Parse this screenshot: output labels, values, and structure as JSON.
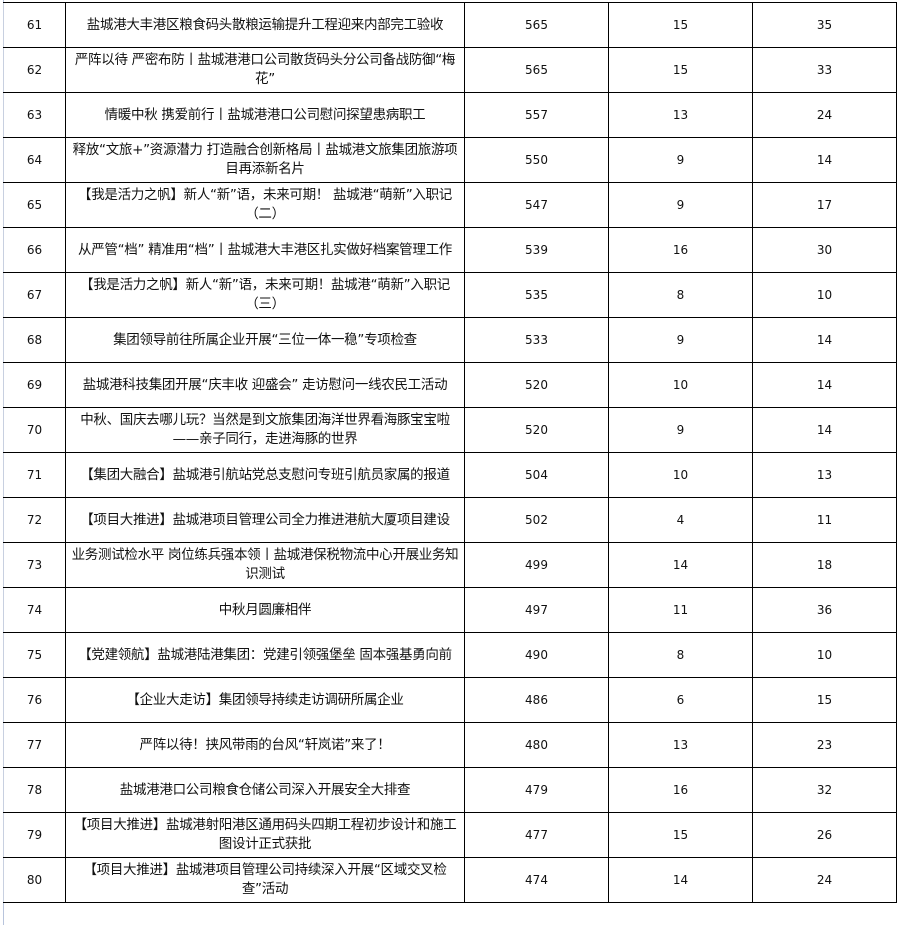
{
  "table": {
    "rows": [
      {
        "no": "61",
        "title": "盐城港大丰港区粮食码头散粮运输提升工程迎来内部完工验收",
        "v1": "565",
        "v2": "15",
        "v3": "35"
      },
      {
        "no": "62",
        "title": "严阵以待 严密布防丨盐城港港口公司散货码头分公司备战防御“梅花”",
        "v1": "565",
        "v2": "15",
        "v3": "33"
      },
      {
        "no": "63",
        "title": "情暖中秋 携爱前行丨盐城港港口公司慰问探望患病职工",
        "v1": "557",
        "v2": "13",
        "v3": "24"
      },
      {
        "no": "64",
        "title": "释放“文旅+”资源潜力 打造融合创新格局丨盐城港文旅集团旅游项目再添新名片",
        "v1": "550",
        "v2": "9",
        "v3": "14"
      },
      {
        "no": "65",
        "title": "【我是活力之帆】新人“新”语，未来可期！ 盐城港“萌新”入职记（二）",
        "v1": "547",
        "v2": "9",
        "v3": "17"
      },
      {
        "no": "66",
        "title": "从严管“档” 精准用“档”丨盐城港大丰港区扎实做好档案管理工作",
        "v1": "539",
        "v2": "16",
        "v3": "30"
      },
      {
        "no": "67",
        "title": "【我是活力之帆】新人“新”语，未来可期！盐城港“萌新”入职记（三）",
        "v1": "535",
        "v2": "8",
        "v3": "10"
      },
      {
        "no": "68",
        "title": "集团领导前往所属企业开展“三位一体一稳”专项检查",
        "v1": "533",
        "v2": "9",
        "v3": "14"
      },
      {
        "no": "69",
        "title": "盐城港科技集团开展“庆丰收 迎盛会” 走访慰问一线农民工活动",
        "v1": "520",
        "v2": "10",
        "v3": "14"
      },
      {
        "no": "70",
        "title": "中秋、国庆去哪儿玩？当然是到文旅集团海洋世界看海豚宝宝啦——亲子同行，走进海豚的世界",
        "v1": "520",
        "v2": "9",
        "v3": "14"
      },
      {
        "no": "71",
        "title": "【集团大融合】盐城港引航站党总支慰问专班引航员家属的报道",
        "v1": "504",
        "v2": "10",
        "v3": "13"
      },
      {
        "no": "72",
        "title": "【项目大推进】盐城港项目管理公司全力推进港航大厦项目建设",
        "v1": "502",
        "v2": "4",
        "v3": "11"
      },
      {
        "no": "73",
        "title": "业务测试检水平 岗位练兵强本领丨盐城港保税物流中心开展业务知识测试",
        "v1": "499",
        "v2": "14",
        "v3": "18"
      },
      {
        "no": "74",
        "title": "中秋月圆廉相伴",
        "v1": "497",
        "v2": "11",
        "v3": "36"
      },
      {
        "no": "75",
        "title": "【党建领航】盐城港陆港集团：党建引领强堡垒 固本强基勇向前",
        "v1": "490",
        "v2": "8",
        "v3": "10"
      },
      {
        "no": "76",
        "title": "【企业大走访】集团领导持续走访调研所属企业",
        "v1": "486",
        "v2": "6",
        "v3": "15"
      },
      {
        "no": "77",
        "title": "严阵以待！挟风带雨的台风“轩岚诺”来了！",
        "v1": "480",
        "v2": "13",
        "v3": "23"
      },
      {
        "no": "78",
        "title": "盐城港港口公司粮食仓储公司深入开展安全大排查",
        "v1": "479",
        "v2": "16",
        "v3": "32"
      },
      {
        "no": "79",
        "title": "【项目大推进】盐城港射阳港区通用码头四期工程初步设计和施工图设计正式获批",
        "v1": "477",
        "v2": "15",
        "v3": "26"
      },
      {
        "no": "80",
        "title": "【项目大推进】盐城港项目管理公司持续深入开展“区域交叉检查”活动",
        "v1": "474",
        "v2": "14",
        "v3": "24"
      }
    ]
  }
}
